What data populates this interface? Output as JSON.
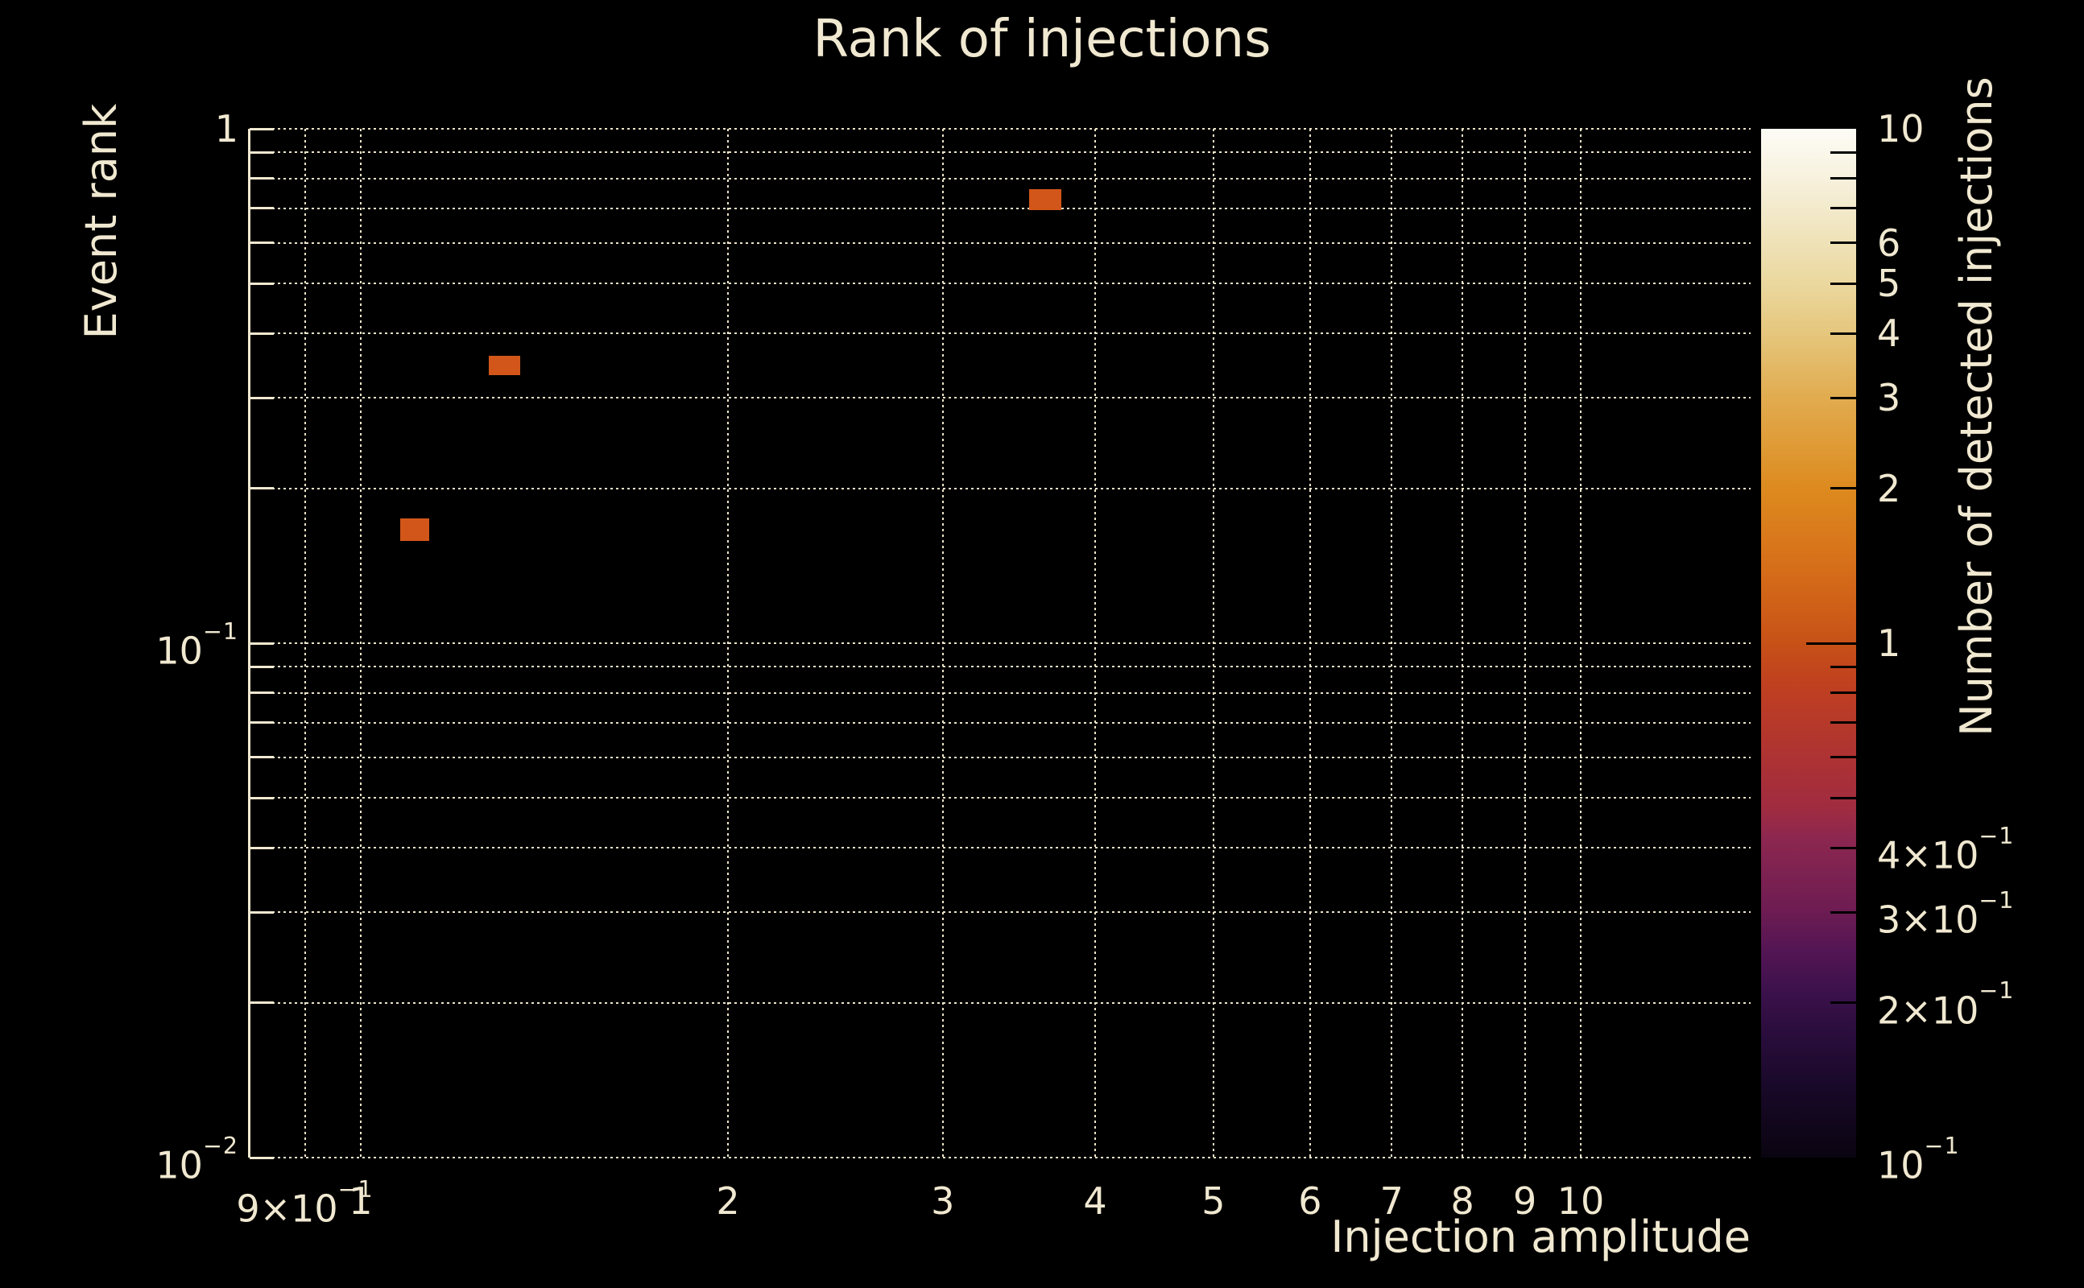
{
  "title": "Rank of injections",
  "colors": {
    "background": "#000000",
    "text": "#f0e8d0",
    "grid": "#ece4c9",
    "axis_line": "#f0e8d0",
    "bin_fill": "#d2561a",
    "colorbar_tick": "#000000"
  },
  "chart_data": {
    "type": "heatmap",
    "title": "Rank of injections",
    "xlabel": "Injection amplitude",
    "ylabel": "Event rank",
    "colorbar_label": "Number of detected injections",
    "xscale": "log",
    "yscale": "log",
    "colorscale": "log",
    "xlim": [
      0.811,
      13.78
    ],
    "ylim": [
      0.01,
      1.0
    ],
    "clim": [
      0.1,
      10
    ],
    "grid": true,
    "x_grid": [
      0.9,
      1,
      2,
      3,
      4,
      5,
      6,
      7,
      8,
      9,
      10
    ],
    "y_grid": [
      1,
      0.9,
      0.8,
      0.7,
      0.6,
      0.5,
      0.4,
      0.3,
      0.2,
      0.1,
      0.09,
      0.08,
      0.07,
      0.06,
      0.05,
      0.04,
      0.03,
      0.02,
      0.01
    ],
    "x_ticks": [
      {
        "v": 0.9,
        "b": "9×10",
        "e": "−1"
      },
      {
        "v": 1,
        "b": "1"
      },
      {
        "v": 2,
        "b": "2"
      },
      {
        "v": 3,
        "b": "3"
      },
      {
        "v": 4,
        "b": "4"
      },
      {
        "v": 5,
        "b": "5"
      },
      {
        "v": 6,
        "b": "6"
      },
      {
        "v": 7,
        "b": "7"
      },
      {
        "v": 8,
        "b": "8"
      },
      {
        "v": 9,
        "b": "9"
      },
      {
        "v": 10,
        "b": "10"
      }
    ],
    "y_ticks": [
      {
        "v": 1,
        "b": "1"
      },
      {
        "v": 0.1,
        "b": "10",
        "e": "−1"
      },
      {
        "v": 0.01,
        "b": "10",
        "e": "−2"
      }
    ],
    "colorbar_minor_ticks": [
      9,
      8,
      7,
      6,
      5,
      4,
      3,
      2,
      0.9,
      0.8,
      0.7,
      0.6,
      0.5,
      0.4,
      0.3,
      0.2
    ],
    "colorbar_major_ticks": [
      1
    ],
    "colorbar_labels": [
      {
        "v": 10,
        "b": "10"
      },
      {
        "v": 6,
        "b": "6"
      },
      {
        "v": 5,
        "b": "5"
      },
      {
        "v": 4,
        "b": "4"
      },
      {
        "v": 3,
        "b": "3"
      },
      {
        "v": 2,
        "b": "2"
      },
      {
        "v": 1,
        "b": "1"
      },
      {
        "v": 0.4,
        "b": "4×10",
        "e": "−1"
      },
      {
        "v": 0.3,
        "b": "3×10",
        "e": "−1"
      },
      {
        "v": 0.2,
        "b": "2×10",
        "e": "−1"
      },
      {
        "v": 0.1,
        "b": "10",
        "e": "−1"
      }
    ],
    "colormap_stops": [
      {
        "at": 0,
        "color": "#fdfcf5"
      },
      {
        "at": 4,
        "color": "#f8f3e2"
      },
      {
        "at": 11,
        "color": "#efe2b8"
      },
      {
        "at": 15,
        "color": "#ebd89f"
      },
      {
        "at": 20,
        "color": "#e5c67c"
      },
      {
        "at": 26,
        "color": "#e1ac50"
      },
      {
        "at": 31,
        "color": "#df9a35"
      },
      {
        "at": 35,
        "color": "#dd8a1f"
      },
      {
        "at": 43,
        "color": "#d66d19"
      },
      {
        "at": 50,
        "color": "#c75117"
      },
      {
        "at": 54,
        "color": "#c04020"
      },
      {
        "at": 57,
        "color": "#b83a28"
      },
      {
        "at": 62,
        "color": "#ab3135"
      },
      {
        "at": 66,
        "color": "#a02c40"
      },
      {
        "at": 69,
        "color": "#8c2750"
      },
      {
        "at": 76,
        "color": "#6d1c52"
      },
      {
        "at": 80,
        "color": "#531554"
      },
      {
        "at": 84,
        "color": "#3b114b"
      },
      {
        "at": 88,
        "color": "#2a0d3c"
      },
      {
        "at": 93,
        "color": "#190929"
      },
      {
        "at": 100,
        "color": "#0a0410"
      }
    ],
    "bins": [
      {
        "x": [
          3.53,
          3.75
        ],
        "y": [
          0.695,
          0.762
        ],
        "count": 1
      },
      {
        "x": [
          1.274,
          1.352
        ],
        "y": [
          0.332,
          0.362
        ],
        "count": 1
      },
      {
        "x": [
          1.077,
          1.139
        ],
        "y": [
          0.158,
          0.175
        ],
        "count": 1
      }
    ]
  }
}
